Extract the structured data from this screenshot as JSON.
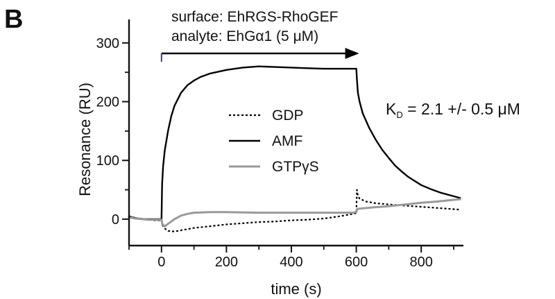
{
  "panel_label": "B",
  "annotations": {
    "surface": "surface: EhRGS-RhoGEF",
    "analyte": "analyte: EhGα1 (5 μM)",
    "kd_k": "K",
    "kd_sub": "D",
    "kd_rest": " = 2.1 +/- 0.5  μM"
  },
  "chart_data": {
    "type": "line",
    "title": "",
    "xlabel": "time (s)",
    "ylabel": "Resonance (RU)",
    "xlim": [
      -100,
      930
    ],
    "ylim": [
      -45,
      340
    ],
    "xticks": [
      0,
      200,
      400,
      600,
      800
    ],
    "yticks": [
      0,
      100,
      200,
      300
    ],
    "injection": {
      "start": 0,
      "end": 600
    },
    "legend": {
      "position": "center",
      "entries": [
        "GDP",
        "AMF",
        "GTPγS"
      ]
    },
    "series": [
      {
        "name": "AMF",
        "color": "#000000",
        "style": "solid",
        "points": [
          [
            -100,
            5
          ],
          [
            -90,
            3
          ],
          [
            -70,
            1
          ],
          [
            -50,
            0
          ],
          [
            -30,
            0
          ],
          [
            -10,
            0
          ],
          [
            -2,
            0
          ],
          [
            0,
            0
          ],
          [
            2,
            60
          ],
          [
            5,
            90
          ],
          [
            10,
            117
          ],
          [
            20,
            150
          ],
          [
            30,
            175
          ],
          [
            40,
            193
          ],
          [
            60,
            215
          ],
          [
            80,
            228
          ],
          [
            100,
            236
          ],
          [
            120,
            242
          ],
          [
            150,
            248
          ],
          [
            200,
            254
          ],
          [
            250,
            258
          ],
          [
            300,
            260
          ],
          [
            350,
            259
          ],
          [
            400,
            258
          ],
          [
            450,
            257
          ],
          [
            500,
            256
          ],
          [
            550,
            256
          ],
          [
            598,
            256
          ],
          [
            600,
            256
          ],
          [
            602,
            238
          ],
          [
            605,
            215
          ],
          [
            610,
            200
          ],
          [
            620,
            180
          ],
          [
            640,
            155
          ],
          [
            660,
            135
          ],
          [
            680,
            118
          ],
          [
            700,
            104
          ],
          [
            720,
            91
          ],
          [
            740,
            81
          ],
          [
            760,
            72
          ],
          [
            780,
            65
          ],
          [
            800,
            58
          ],
          [
            830,
            51
          ],
          [
            860,
            45
          ],
          [
            900,
            39
          ],
          [
            920,
            36
          ]
        ]
      },
      {
        "name": "GDP",
        "color": "#000000",
        "style": "dotted",
        "points": [
          [
            -100,
            5
          ],
          [
            -80,
            2
          ],
          [
            -60,
            0
          ],
          [
            -40,
            -1
          ],
          [
            -20,
            -2
          ],
          [
            -5,
            -2
          ],
          [
            0,
            -2
          ],
          [
            3,
            -10
          ],
          [
            10,
            -16
          ],
          [
            20,
            -20
          ],
          [
            40,
            -21
          ],
          [
            60,
            -19
          ],
          [
            100,
            -15
          ],
          [
            150,
            -12
          ],
          [
            200,
            -9
          ],
          [
            250,
            -7
          ],
          [
            300,
            -5
          ],
          [
            350,
            -4
          ],
          [
            400,
            -2
          ],
          [
            450,
            -1
          ],
          [
            500,
            1
          ],
          [
            550,
            5
          ],
          [
            590,
            9
          ],
          [
            598,
            10
          ],
          [
            600,
            10
          ],
          [
            602,
            50
          ],
          [
            605,
            40
          ],
          [
            610,
            35
          ],
          [
            630,
            30
          ],
          [
            660,
            27
          ],
          [
            700,
            25
          ],
          [
            750,
            23
          ],
          [
            800,
            21
          ],
          [
            850,
            19
          ],
          [
            900,
            17
          ],
          [
            920,
            16
          ]
        ]
      },
      {
        "name": "GTPγS",
        "color": "#999999",
        "style": "solid",
        "points": [
          [
            -100,
            3
          ],
          [
            -80,
            1
          ],
          [
            -60,
            0
          ],
          [
            -40,
            -1
          ],
          [
            -20,
            -1
          ],
          [
            0,
            -1
          ],
          [
            3,
            -9
          ],
          [
            10,
            -12
          ],
          [
            20,
            -8
          ],
          [
            40,
            0
          ],
          [
            60,
            6
          ],
          [
            80,
            9
          ],
          [
            100,
            11
          ],
          [
            150,
            12
          ],
          [
            200,
            12
          ],
          [
            300,
            11
          ],
          [
            400,
            11
          ],
          [
            500,
            11
          ],
          [
            560,
            11
          ],
          [
            590,
            11
          ],
          [
            598,
            12
          ],
          [
            600,
            12
          ],
          [
            602,
            17
          ],
          [
            610,
            18
          ],
          [
            650,
            20
          ],
          [
            700,
            22
          ],
          [
            750,
            25
          ],
          [
            800,
            28
          ],
          [
            850,
            30
          ],
          [
            900,
            33
          ],
          [
            920,
            34
          ]
        ]
      }
    ]
  }
}
